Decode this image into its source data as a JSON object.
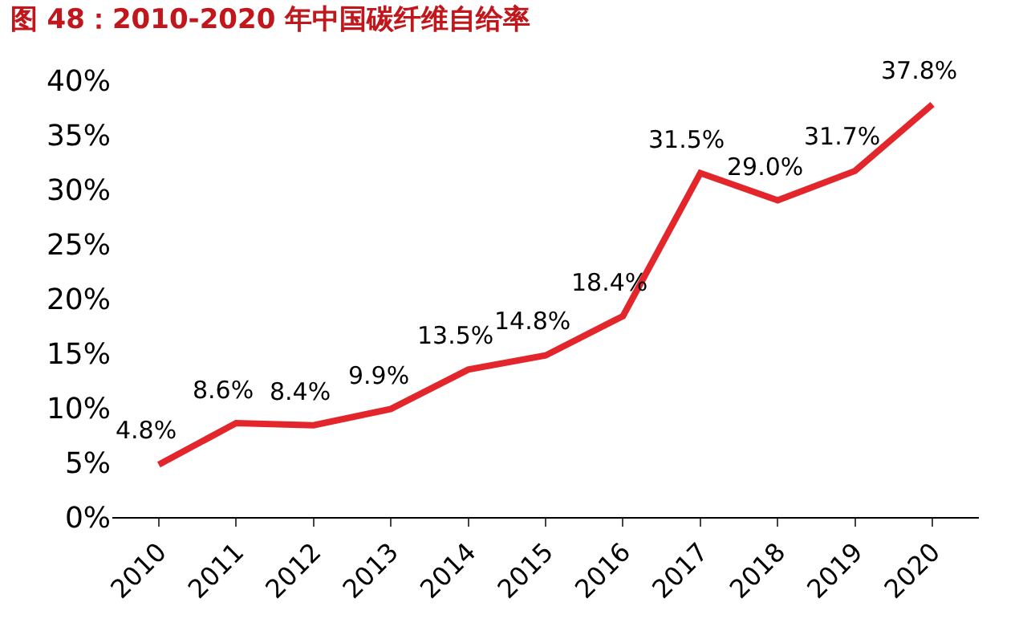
{
  "chart_data": {
    "type": "line",
    "title": "图 48：2010-2020 年中国碳纤维自给率",
    "categories": [
      "2010",
      "2011",
      "2012",
      "2013",
      "2014",
      "2015",
      "2016",
      "2017",
      "2018",
      "2019",
      "2020"
    ],
    "series": [
      {
        "color": "#e3262b",
        "values": [
          4.8,
          8.6,
          8.4,
          9.9,
          13.5,
          14.8,
          18.4,
          31.5,
          29.0,
          31.7,
          37.8
        ],
        "value_labels": [
          "4.8%",
          "8.6%",
          "8.4%",
          "9.9%",
          "13.5%",
          "14.8%",
          "18.4%",
          "31.5%",
          "29.0%",
          "31.7%",
          "37.8%"
        ]
      }
    ],
    "ylim": [
      0,
      40
    ],
    "yticks": [
      {
        "value": 0,
        "label": "0%"
      },
      {
        "value": 5,
        "label": "5%"
      },
      {
        "value": 10,
        "label": "10%"
      },
      {
        "value": 15,
        "label": "15%"
      },
      {
        "value": 20,
        "label": "20%"
      },
      {
        "value": 25,
        "label": "25%"
      },
      {
        "value": 30,
        "label": "30%"
      },
      {
        "value": 35,
        "label": "35%"
      },
      {
        "value": 40,
        "label": "40%"
      }
    ],
    "legend": false,
    "marker": "none",
    "line_style": "solid"
  }
}
